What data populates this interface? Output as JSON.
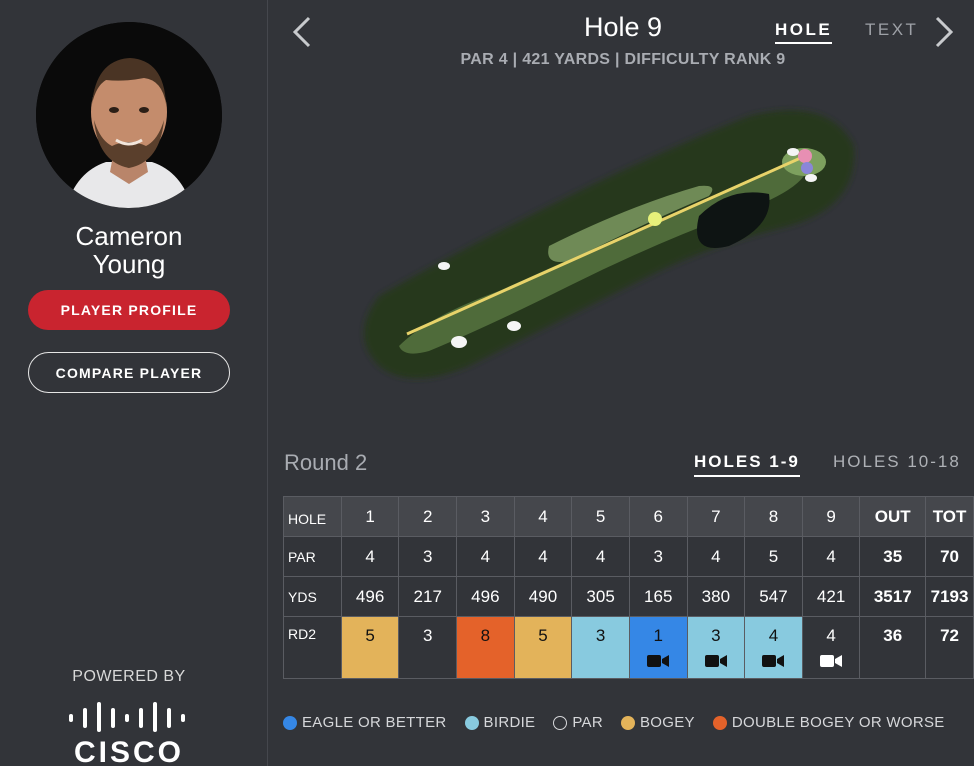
{
  "player": {
    "first_name": "Cameron",
    "last_name": "Young",
    "profile_button": "PLAYER PROFILE",
    "compare_button": "COMPARE PLAYER"
  },
  "sponsor": {
    "powered_by": "POWERED BY",
    "brand": "CISCO"
  },
  "hole": {
    "title": "Hole 9",
    "subtitle": "PAR 4 | 421 YARDS | DIFFICULTY RANK 9",
    "view_tabs": [
      "HOLE",
      "TEXT"
    ]
  },
  "round": {
    "label": "Round 2",
    "range_tabs": [
      "HOLES 1-9",
      "HOLES 10-18"
    ]
  },
  "scorecard": {
    "header": [
      "HOLE",
      "1",
      "2",
      "3",
      "4",
      "5",
      "6",
      "7",
      "8",
      "9",
      "OUT",
      "TOT"
    ],
    "par": [
      "PAR",
      "4",
      "3",
      "4",
      "4",
      "4",
      "3",
      "4",
      "5",
      "4",
      "35",
      "70"
    ],
    "yds": [
      "YDS",
      "496",
      "217",
      "496",
      "490",
      "305",
      "165",
      "380",
      "547",
      "421",
      "3517",
      "7193"
    ],
    "rd2": [
      "RD2",
      "5",
      "3",
      "8",
      "5",
      "3",
      "1",
      "3",
      "4",
      "4",
      "36",
      "72"
    ],
    "rd2_result": [
      "",
      "bogey",
      "par",
      "double",
      "bogey",
      "birdie",
      "eagle",
      "birdie",
      "birdie",
      "par",
      "",
      ""
    ],
    "rd2_video": [
      false,
      false,
      false,
      false,
      false,
      false,
      true,
      true,
      true,
      true,
      false,
      false
    ]
  },
  "legend": [
    {
      "label": "EAGLE OR BETTER",
      "color": "#3587e6"
    },
    {
      "label": "BIRDIE",
      "color": "#88cadf"
    },
    {
      "label": "PAR",
      "color": "outline"
    },
    {
      "label": "BOGEY",
      "color": "#e3b35a"
    },
    {
      "label": "DOUBLE BOGEY OR WORSE",
      "color": "#e4622a"
    }
  ],
  "colors": {
    "accent_red": "#c9242f",
    "background": "#323439",
    "shot_line": "#e8d36a",
    "pin": "#e78fb3"
  },
  "icons": [
    "back-chevron-icon",
    "forward-chevron-icon",
    "video-camera-icon",
    "cisco-logo-icon"
  ]
}
